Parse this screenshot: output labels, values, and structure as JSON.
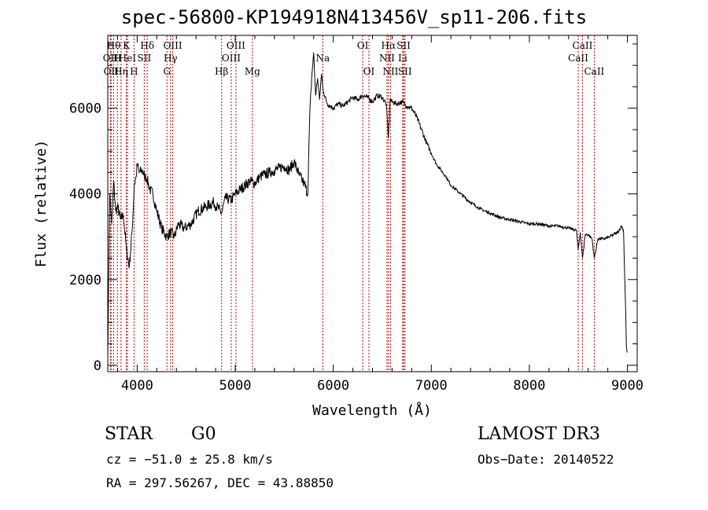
{
  "chart_data": {
    "type": "line",
    "title": "spec-56800-KP194918N413456V_sp11-206.fits",
    "xlabel": "Wavelength (Å)",
    "ylabel": "Flux (relative)",
    "xlim": [
      3700,
      9100
    ],
    "ylim": [
      -150,
      7700
    ],
    "x_ticks": [
      4000,
      5000,
      6000,
      7000,
      8000,
      9000
    ],
    "x_tick_labels": [
      "4000",
      "5000",
      "6000",
      "7000",
      "8000",
      "9000"
    ],
    "y_ticks": [
      0,
      2000,
      4000,
      6000
    ],
    "y_tick_labels": [
      "0",
      "2000",
      "4000",
      "6000"
    ],
    "series": [
      {
        "x": [
          3700,
          3720,
          3740,
          3760,
          3780,
          3800,
          3830,
          3860,
          3890,
          3920,
          3950,
          3970,
          3990,
          4000,
          4020,
          4050,
          4080,
          4100,
          4130,
          4160,
          4200,
          4250,
          4300,
          4340,
          4380,
          4420,
          4480,
          4550,
          4620,
          4700,
          4780,
          4861,
          4900,
          4960,
          5000,
          5050,
          5100,
          5150,
          5200,
          5250,
          5300,
          5350,
          5400,
          5450,
          5500,
          5550,
          5600,
          5650,
          5700,
          5740,
          5760,
          5780,
          5800,
          5820,
          5840,
          5860,
          5880,
          5893,
          5910,
          5940,
          6000,
          6050,
          6100,
          6150,
          6200,
          6250,
          6300,
          6350,
          6400,
          6450,
          6500,
          6540,
          6563,
          6580,
          6600,
          6650,
          6700,
          6750,
          6800,
          6850,
          6900,
          6950,
          7000,
          7050,
          7100,
          7150,
          7200,
          7300,
          7400,
          7500,
          7600,
          7700,
          7800,
          7900,
          8000,
          8100,
          8200,
          8300,
          8400,
          8480,
          8498,
          8520,
          8542,
          8570,
          8600,
          8640,
          8662,
          8700,
          8760,
          8820,
          8860,
          8900,
          8940,
          8960,
          8980,
          8990,
          9000
        ],
        "values": [
          200,
          4000,
          3300,
          4300,
          3600,
          3700,
          3400,
          3500,
          2700,
          2300,
          3200,
          4200,
          4400,
          4700,
          4500,
          4550,
          4400,
          4350,
          4100,
          4000,
          3600,
          3200,
          3000,
          3100,
          3000,
          3300,
          3200,
          3300,
          3600,
          3700,
          3800,
          3550,
          3900,
          3850,
          4000,
          4100,
          4200,
          4300,
          4250,
          4400,
          4450,
          4500,
          4550,
          4600,
          4650,
          4550,
          4750,
          4450,
          4250,
          4000,
          5800,
          6700,
          7300,
          6300,
          6700,
          6200,
          6800,
          6500,
          6300,
          6100,
          6000,
          6100,
          6050,
          6150,
          6250,
          6200,
          6300,
          6250,
          6150,
          6300,
          6250,
          6100,
          5300,
          6200,
          6150,
          6100,
          6150,
          6050,
          6000,
          5800,
          5500,
          5200,
          4950,
          4700,
          4550,
          4400,
          4200,
          4000,
          3800,
          3650,
          3550,
          3450,
          3400,
          3350,
          3300,
          3300,
          3250,
          3250,
          3200,
          3150,
          2700,
          3100,
          2500,
          3050,
          3050,
          2950,
          2500,
          2950,
          2950,
          3000,
          3050,
          3100,
          3250,
          3150,
          1500,
          400,
          300
        ]
      }
    ],
    "lines": [
      {
        "x": 3727,
        "label": "OII",
        "row": 2
      },
      {
        "x": 3734,
        "label": "OII",
        "row": 3
      },
      {
        "x": 3760,
        "label": "Hθ",
        "row": 1
      },
      {
        "x": 3798,
        "label": "H",
        "row": 2
      },
      {
        "x": 3835,
        "label": "Hη",
        "row": 3
      },
      {
        "x": 3889,
        "label": "K",
        "row": 1
      },
      {
        "x": 3900,
        "label": "HeI",
        "row": 2
      },
      {
        "x": 3968,
        "label": "H",
        "row": 3
      },
      {
        "x": 4072,
        "label": "SII",
        "row": 2
      },
      {
        "x": 4102,
        "label": "Hδ",
        "row": 1
      },
      {
        "x": 4304,
        "label": "G",
        "row": 3
      },
      {
        "x": 4340,
        "label": "Hγ",
        "row": 2
      },
      {
        "x": 4363,
        "label": "OIII",
        "row": 1
      },
      {
        "x": 4861,
        "label": "Hβ",
        "row": 3
      },
      {
        "x": 4959,
        "label": "OIII",
        "row": 2
      },
      {
        "x": 5007,
        "label": "OIII",
        "row": 1
      },
      {
        "x": 5175,
        "label": "Mg",
        "row": 3
      },
      {
        "x": 5893,
        "label": "Na",
        "row": 2
      },
      {
        "x": 6300,
        "label": "OI",
        "row": 1
      },
      {
        "x": 6364,
        "label": "OI",
        "row": 3
      },
      {
        "x": 6548,
        "label": "NII",
        "row": 2
      },
      {
        "x": 6563,
        "label": "Hα",
        "row": 1
      },
      {
        "x": 6584,
        "label": "NII",
        "row": 3
      },
      {
        "x": 6708,
        "label": "Li",
        "row": 2
      },
      {
        "x": 6717,
        "label": "SII",
        "row": 1
      },
      {
        "x": 6731,
        "label": "SII",
        "row": 3
      },
      {
        "x": 8498,
        "label": "CaII",
        "row": 2
      },
      {
        "x": 8542,
        "label": "CaII",
        "row": 1
      },
      {
        "x": 8662,
        "label": "CaII",
        "row": 3
      }
    ]
  },
  "info": {
    "class": "STAR",
    "subclass": "G0",
    "survey": "LAMOST DR3",
    "cz": "cz = −51.0 ± 25.8 km/s",
    "obs_date": "Obs−Date: 20140522",
    "radec": "RA = 297.56267, DEC =  43.88850"
  },
  "colors": {
    "line_marker": "#cc0000",
    "spectrum": "#000000"
  }
}
